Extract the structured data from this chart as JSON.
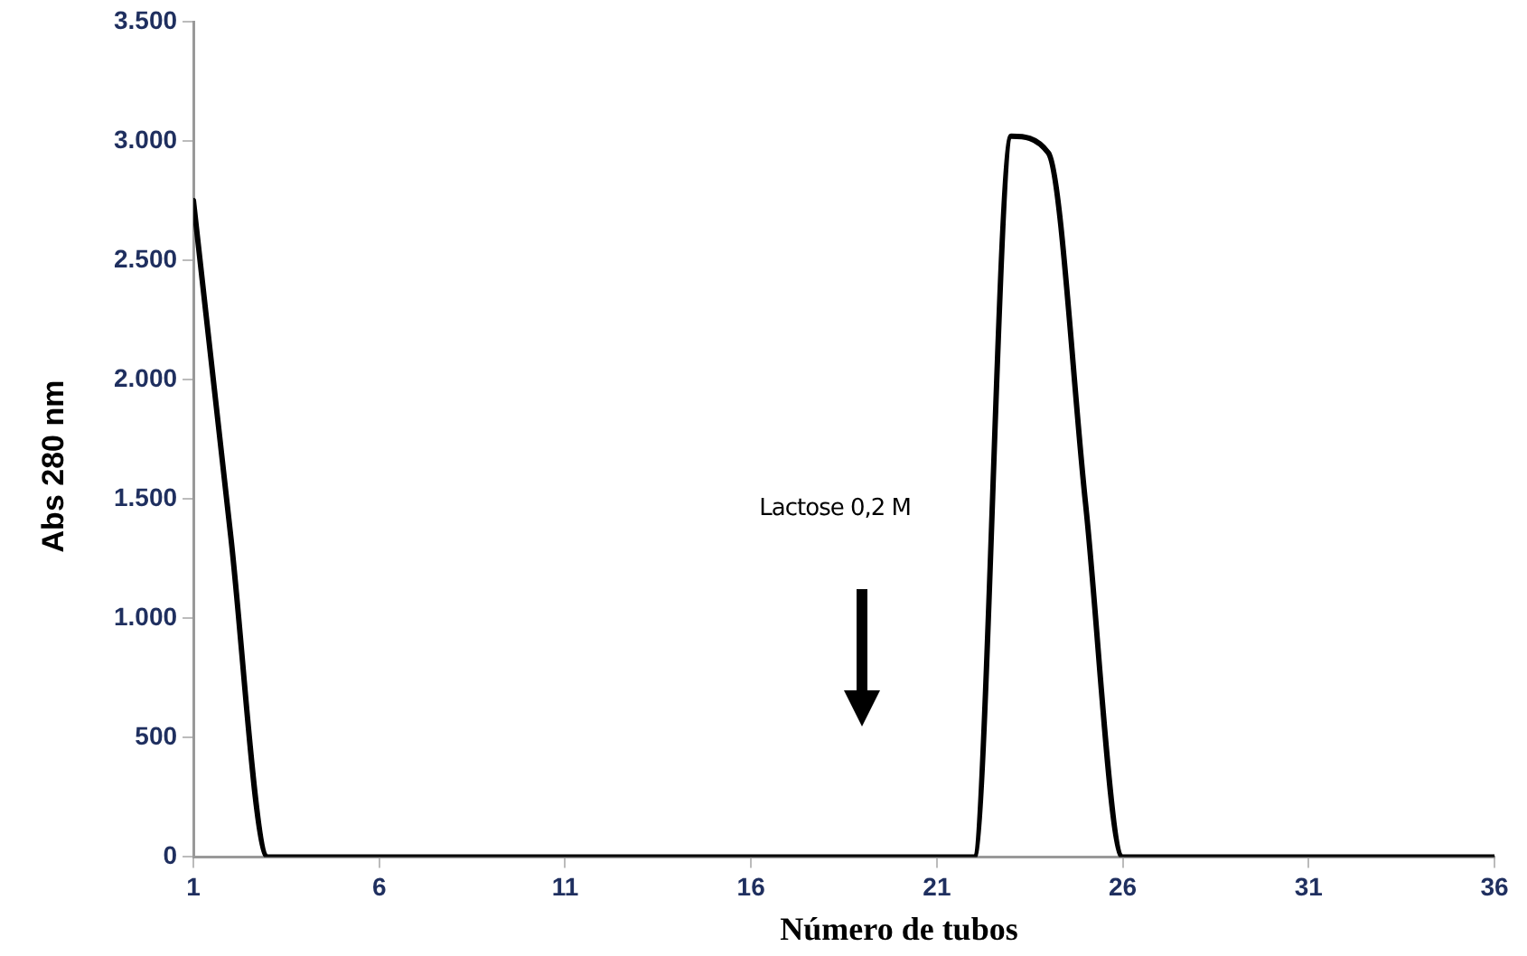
{
  "chart_data": {
    "type": "line",
    "xlabel": "Número de tubos",
    "ylabel": "Abs 280 nm",
    "x": [
      1,
      2,
      3,
      4,
      5,
      6,
      7,
      8,
      9,
      10,
      11,
      12,
      13,
      14,
      15,
      16,
      17,
      18,
      19,
      20,
      21,
      22,
      23,
      24,
      25,
      26,
      27,
      28,
      29,
      30,
      31,
      32,
      33,
      34,
      35,
      36
    ],
    "series": [
      {
        "color": "#000000",
        "values": [
          2750,
          1350,
          0,
          0,
          0,
          0,
          0,
          0,
          0,
          0,
          0,
          0,
          0,
          0,
          0,
          0,
          0,
          0,
          0,
          0,
          0,
          0,
          3020,
          2950,
          1480,
          0,
          0,
          0,
          0,
          0,
          0,
          0,
          0,
          0,
          0,
          0
        ]
      }
    ],
    "xlim": [
      1,
      36
    ],
    "xticks": [
      1,
      6,
      11,
      16,
      21,
      26,
      31,
      36
    ],
    "ylim": [
      0,
      3500
    ],
    "yticks": [
      0,
      500,
      {
        "value": 1000,
        "label": "1.000"
      },
      {
        "value": 1500,
        "label": "1.500"
      },
      {
        "value": 2000,
        "label": "2.000"
      },
      {
        "value": 2500,
        "label": "2.500"
      },
      {
        "value": 3000,
        "label": "3.000"
      },
      {
        "value": 3500,
        "label": "3.500"
      }
    ],
    "annotations": [
      "Lactose 0,2 M"
    ],
    "grid": false,
    "legend": false,
    "marker": "none",
    "line_style": "solid"
  }
}
